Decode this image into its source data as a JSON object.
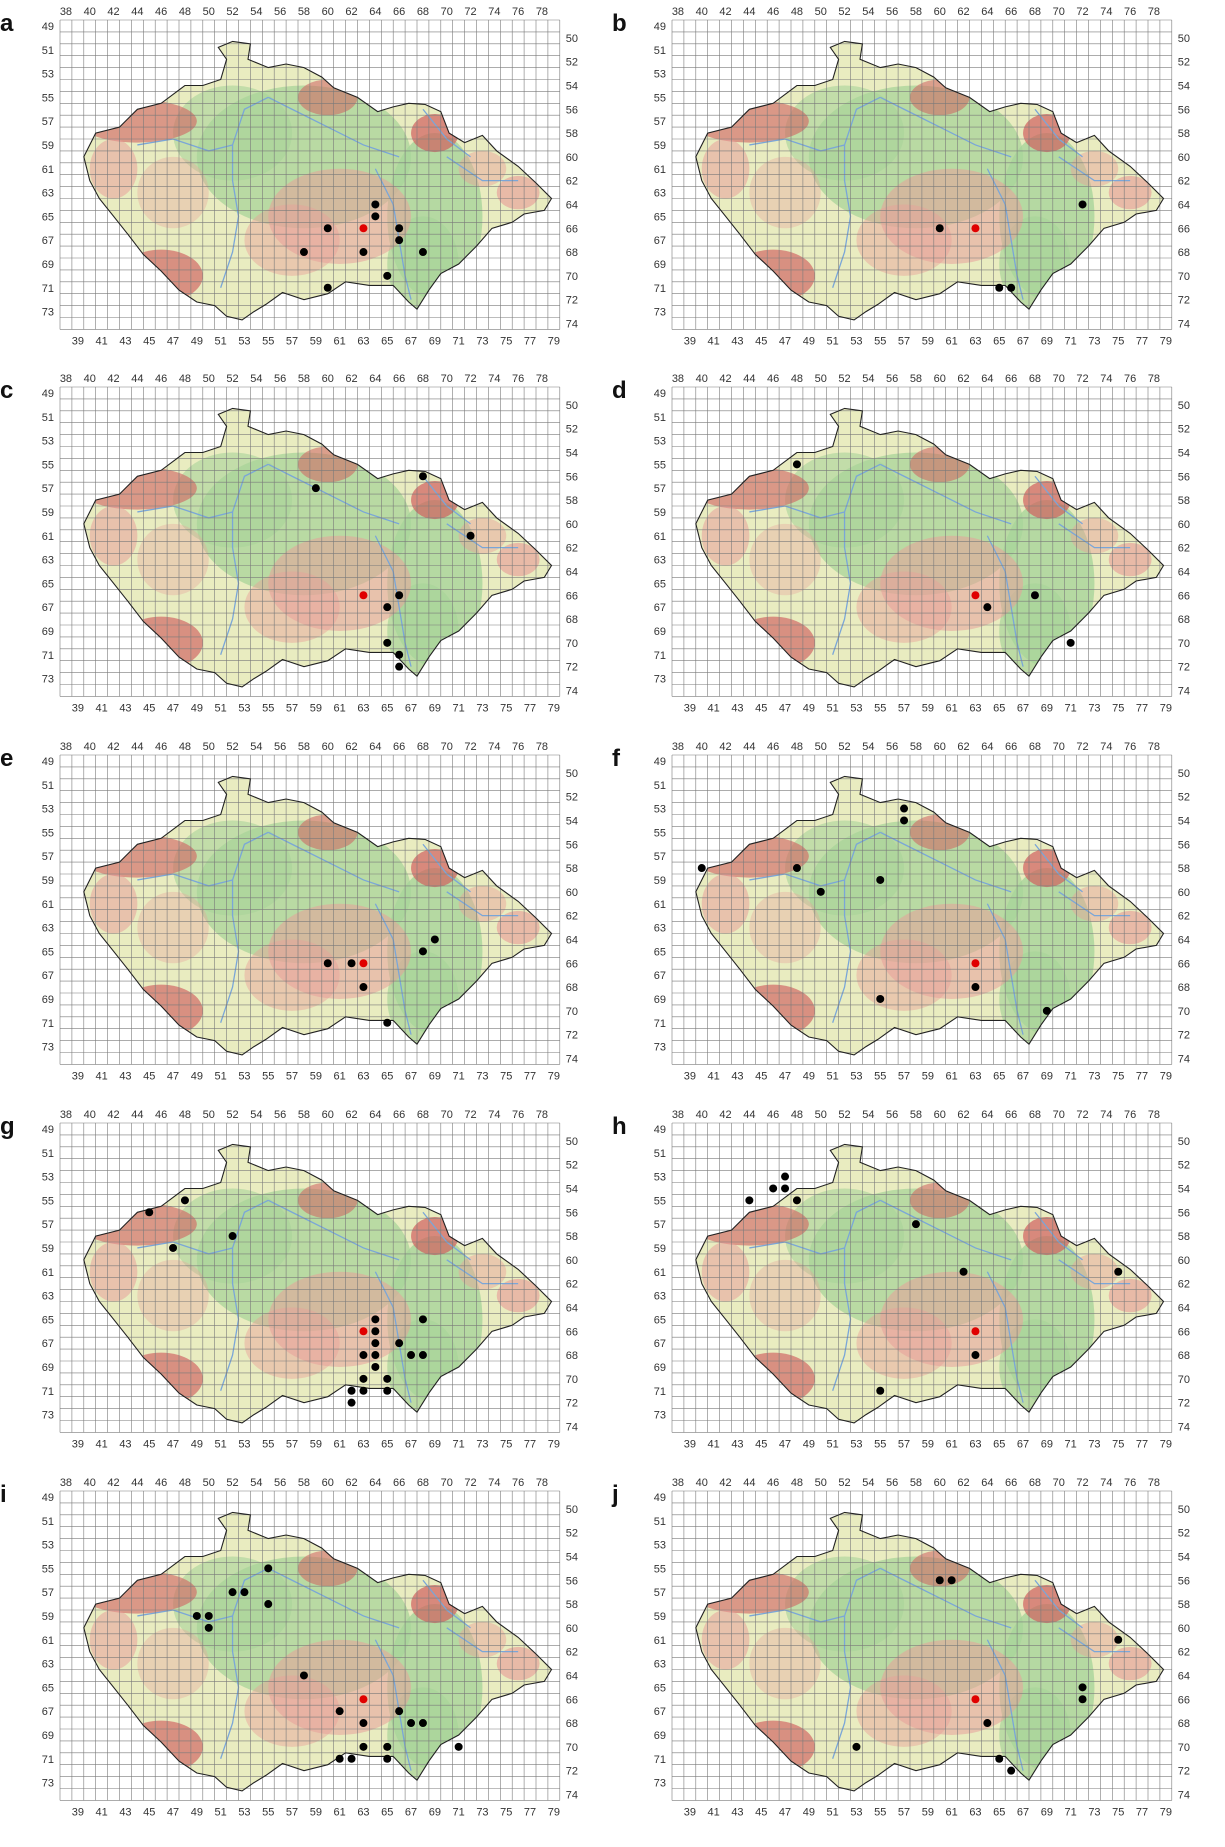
{
  "colors": {
    "grid": "#7a7a7a",
    "border": "#222222",
    "low_land": "#a8d49a",
    "mid_land": "#e9ecc0",
    "high_land": "#e8a09a",
    "mountain": "#d06060",
    "river": "#7aa6d8",
    "record": "#000000",
    "highlight": "#e00000"
  },
  "axes": {
    "top_labels": [
      "38",
      "40",
      "42",
      "44",
      "46",
      "48",
      "50",
      "52",
      "54",
      "56",
      "58",
      "60",
      "62",
      "64",
      "66",
      "68",
      "70",
      "72",
      "74",
      "76",
      "78"
    ],
    "bottom_labels": [
      "39",
      "41",
      "43",
      "45",
      "47",
      "49",
      "51",
      "53",
      "55",
      "57",
      "59",
      "61",
      "63",
      "65",
      "67",
      "69",
      "71",
      "73",
      "75",
      "77",
      "79"
    ],
    "left_labels": [
      "49",
      "51",
      "53",
      "55",
      "57",
      "59",
      "61",
      "63",
      "65",
      "67",
      "69",
      "71",
      "73"
    ],
    "right_labels": [
      "50",
      "52",
      "54",
      "56",
      "58",
      "60",
      "62",
      "64",
      "66",
      "68",
      "70",
      "72",
      "74"
    ]
  },
  "panels": [
    {
      "letter": "a",
      "highlight": [
        63,
        66
      ],
      "points": [
        [
          64,
          64
        ],
        [
          64,
          65
        ],
        [
          60,
          66
        ],
        [
          66,
          66
        ],
        [
          66,
          67
        ],
        [
          58,
          68
        ],
        [
          63,
          68
        ],
        [
          68,
          68
        ],
        [
          65,
          70
        ],
        [
          60,
          71
        ]
      ]
    },
    {
      "letter": "b",
      "highlight": [
        63,
        66
      ],
      "points": [
        [
          72,
          64
        ],
        [
          60,
          66
        ],
        [
          65,
          71
        ],
        [
          66,
          71
        ]
      ]
    },
    {
      "letter": "c",
      "highlight": [
        63,
        66
      ],
      "points": [
        [
          68,
          56
        ],
        [
          59,
          57
        ],
        [
          72,
          61
        ],
        [
          66,
          66
        ],
        [
          65,
          67
        ],
        [
          65,
          70
        ],
        [
          66,
          71
        ],
        [
          66,
          72
        ]
      ]
    },
    {
      "letter": "d",
      "highlight": [
        63,
        66
      ],
      "points": [
        [
          48,
          55
        ],
        [
          68,
          66
        ],
        [
          64,
          67
        ],
        [
          71,
          70
        ]
      ]
    },
    {
      "letter": "e",
      "highlight": [
        63,
        66
      ],
      "points": [
        [
          69,
          64
        ],
        [
          68,
          65
        ],
        [
          60,
          66
        ],
        [
          62,
          66
        ],
        [
          63,
          68
        ],
        [
          65,
          71
        ]
      ]
    },
    {
      "letter": "f",
      "highlight": [
        63,
        66
      ],
      "points": [
        [
          57,
          53
        ],
        [
          57,
          54
        ],
        [
          40,
          58
        ],
        [
          48,
          58
        ],
        [
          55,
          59
        ],
        [
          50,
          60
        ],
        [
          63,
          68
        ],
        [
          55,
          69
        ],
        [
          69,
          70
        ]
      ]
    },
    {
      "letter": "g",
      "highlight": [
        63,
        66
      ],
      "points": [
        [
          48,
          55
        ],
        [
          45,
          56
        ],
        [
          52,
          58
        ],
        [
          47,
          59
        ],
        [
          64,
          65
        ],
        [
          68,
          65
        ],
        [
          64,
          66
        ],
        [
          64,
          67
        ],
        [
          66,
          67
        ],
        [
          63,
          68
        ],
        [
          64,
          68
        ],
        [
          67,
          68
        ],
        [
          68,
          68
        ],
        [
          64,
          69
        ],
        [
          63,
          70
        ],
        [
          65,
          70
        ],
        [
          62,
          71
        ],
        [
          63,
          71
        ],
        [
          65,
          71
        ],
        [
          62,
          72
        ]
      ]
    },
    {
      "letter": "h",
      "highlight": [
        63,
        66
      ],
      "points": [
        [
          47,
          53
        ],
        [
          46,
          54
        ],
        [
          47,
          54
        ],
        [
          44,
          55
        ],
        [
          48,
          55
        ],
        [
          58,
          57
        ],
        [
          62,
          61
        ],
        [
          75,
          61
        ],
        [
          63,
          68
        ],
        [
          55,
          71
        ]
      ]
    },
    {
      "letter": "i",
      "highlight": [
        63,
        66
      ],
      "points": [
        [
          55,
          55
        ],
        [
          52,
          57
        ],
        [
          53,
          57
        ],
        [
          55,
          58
        ],
        [
          49,
          59
        ],
        [
          50,
          59
        ],
        [
          50,
          60
        ],
        [
          58,
          64
        ],
        [
          61,
          67
        ],
        [
          66,
          67
        ],
        [
          63,
          68
        ],
        [
          67,
          68
        ],
        [
          68,
          68
        ],
        [
          63,
          70
        ],
        [
          65,
          70
        ],
        [
          71,
          70
        ],
        [
          61,
          71
        ],
        [
          62,
          71
        ],
        [
          65,
          71
        ]
      ]
    },
    {
      "letter": "j",
      "highlight": [
        63,
        66
      ],
      "points": [
        [
          60,
          56
        ],
        [
          61,
          56
        ],
        [
          75,
          61
        ],
        [
          72,
          65
        ],
        [
          72,
          66
        ],
        [
          64,
          68
        ],
        [
          53,
          70
        ],
        [
          65,
          71
        ],
        [
          66,
          72
        ]
      ]
    }
  ]
}
